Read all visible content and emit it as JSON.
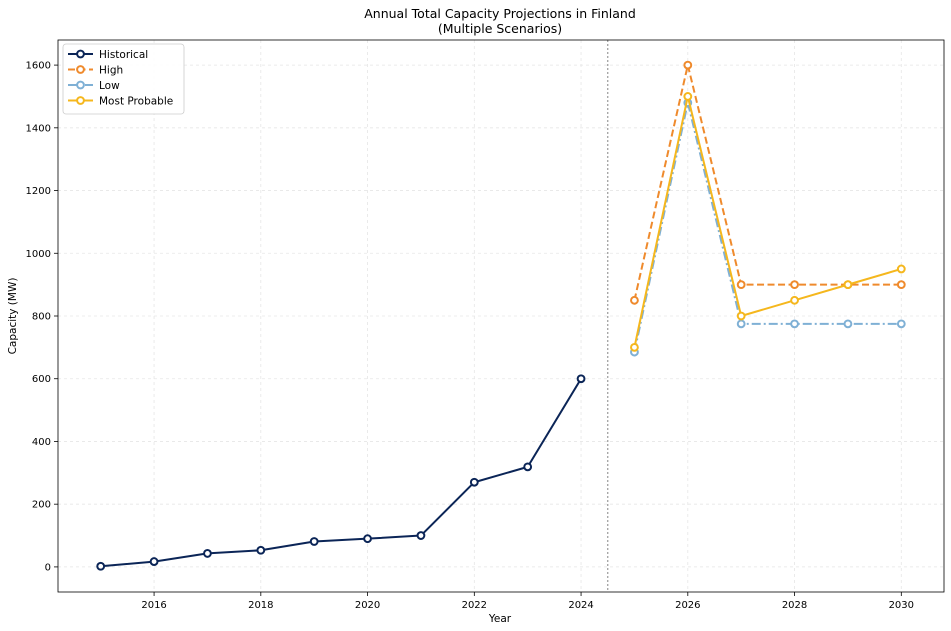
{
  "chart_data": {
    "type": "line",
    "title": "Annual Total Capacity Projections in Finland",
    "subtitle": "(Multiple Scenarios)",
    "xlabel": "Year",
    "ylabel": "Capacity (MW)",
    "xlim": [
      2014.2,
      2030.8
    ],
    "ylim": [
      -80,
      1680
    ],
    "xticks": [
      2016,
      2018,
      2020,
      2022,
      2024,
      2026,
      2028,
      2030
    ],
    "yticks": [
      0,
      200,
      400,
      600,
      800,
      1000,
      1200,
      1400,
      1600
    ],
    "grid": true,
    "legend_position": "top-left",
    "divider_x": 2024.5,
    "series": [
      {
        "name": "Historical",
        "color": "#0b2557",
        "dash": "solid",
        "x": [
          2015,
          2016,
          2017,
          2018,
          2019,
          2020,
          2021,
          2022,
          2023,
          2024
        ],
        "values": [
          2,
          17,
          43,
          53,
          81,
          90,
          100,
          270,
          319,
          600
        ]
      },
      {
        "name": "High",
        "color": "#ef8a2c",
        "dash": "dashed",
        "x": [
          2025,
          2026,
          2027,
          2028,
          2029,
          2030
        ],
        "values": [
          850,
          1600,
          900,
          900,
          900,
          900
        ]
      },
      {
        "name": "Low",
        "color": "#7fb0d5",
        "dash": "dashdot",
        "x": [
          2025,
          2026,
          2027,
          2028,
          2029,
          2030
        ],
        "values": [
          685,
          1480,
          775,
          775,
          775,
          775
        ]
      },
      {
        "name": "Most Probable",
        "color": "#f5b71d",
        "dash": "solid",
        "x": [
          2025,
          2026,
          2027,
          2028,
          2029,
          2030
        ],
        "values": [
          700,
          1500,
          800,
          850,
          900,
          950
        ]
      }
    ]
  }
}
